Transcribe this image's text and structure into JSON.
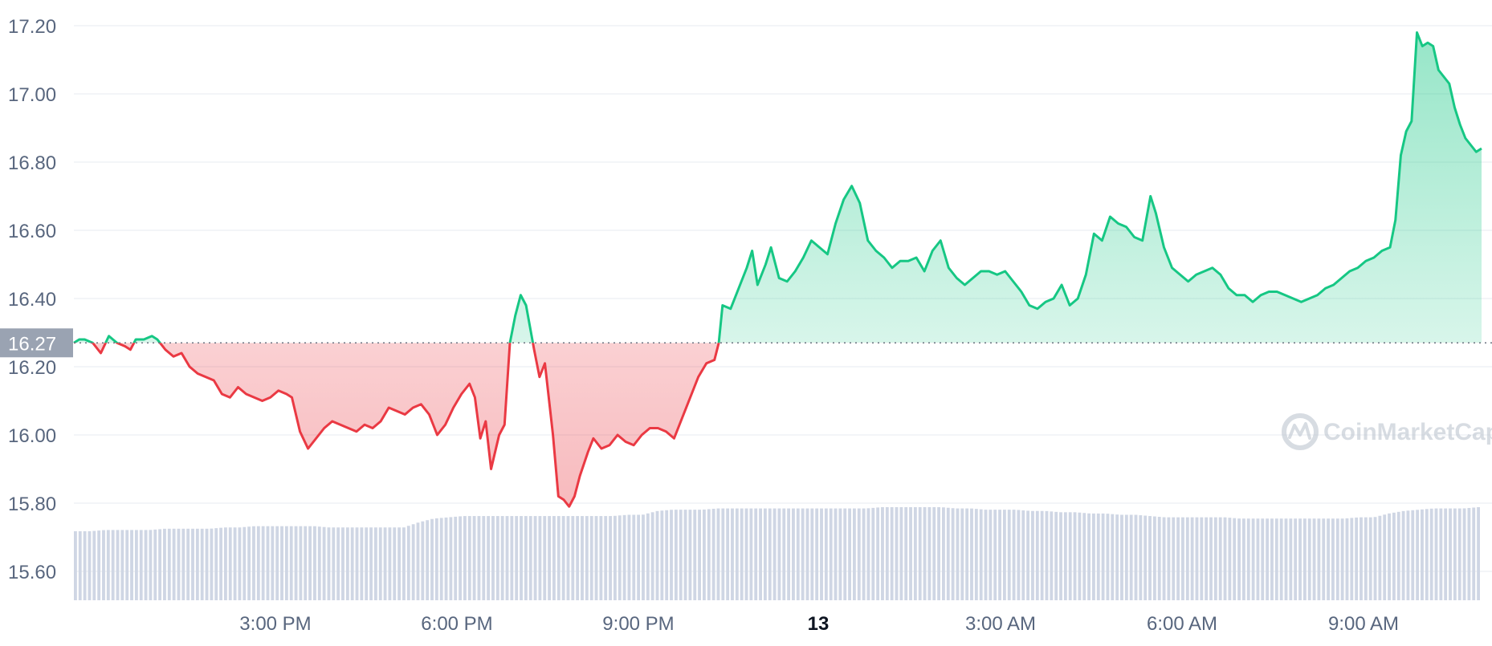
{
  "chart_data": {
    "type": "line",
    "title": "",
    "xlabel": "",
    "ylabel": "",
    "ylim": [
      15.5,
      17.25
    ],
    "y_ticks": [
      "17.20",
      "17.00",
      "16.80",
      "16.60",
      "16.40",
      "16.20",
      "16.00",
      "15.80",
      "15.60"
    ],
    "x_ticks": [
      "3:00 PM",
      "6:00 PM",
      "9:00 PM",
      "13",
      "3:00 AM",
      "6:00 AM",
      "9:00 AM"
    ],
    "x_ticks_bold": [
      "13"
    ],
    "grid": true,
    "legend": "none",
    "baseline": {
      "value": 16.27,
      "label": "16.27"
    },
    "colors": {
      "above": "#16c784",
      "below": "#ea3943",
      "volume": "#cfd6e4",
      "grid": "#eff2f5",
      "axis_text": "#58667e"
    },
    "watermark": "CoinMarketCap",
    "series": [
      {
        "name": "",
        "x_hours_note_removed": true,
        "points": [
          [
            0.0,
            16.27
          ],
          [
            0.1,
            16.28
          ],
          [
            0.2,
            16.28
          ],
          [
            0.35,
            16.27
          ],
          [
            0.5,
            16.24
          ],
          [
            0.65,
            16.29
          ],
          [
            0.8,
            16.27
          ],
          [
            0.95,
            16.26
          ],
          [
            1.05,
            16.25
          ],
          [
            1.15,
            16.28
          ],
          [
            1.3,
            16.28
          ],
          [
            1.45,
            16.29
          ],
          [
            1.55,
            16.28
          ],
          [
            1.7,
            16.25
          ],
          [
            1.85,
            16.23
          ],
          [
            2.0,
            16.24
          ],
          [
            2.15,
            16.2
          ],
          [
            2.3,
            16.18
          ],
          [
            2.45,
            16.17
          ],
          [
            2.6,
            16.16
          ],
          [
            2.75,
            16.12
          ],
          [
            2.9,
            16.11
          ],
          [
            3.05,
            16.14
          ],
          [
            3.2,
            16.12
          ],
          [
            3.35,
            16.11
          ],
          [
            3.5,
            16.1
          ],
          [
            3.65,
            16.11
          ],
          [
            3.8,
            16.13
          ],
          [
            3.95,
            16.12
          ],
          [
            4.05,
            16.11
          ],
          [
            4.2,
            16.01
          ],
          [
            4.35,
            15.96
          ],
          [
            4.5,
            15.99
          ],
          [
            4.65,
            16.02
          ],
          [
            4.8,
            16.04
          ],
          [
            4.95,
            16.03
          ],
          [
            5.1,
            16.02
          ],
          [
            5.25,
            16.01
          ],
          [
            5.4,
            16.03
          ],
          [
            5.55,
            16.02
          ],
          [
            5.7,
            16.04
          ],
          [
            5.85,
            16.08
          ],
          [
            6.0,
            16.07
          ],
          [
            6.15,
            16.06
          ],
          [
            6.3,
            16.08
          ],
          [
            6.45,
            16.09
          ],
          [
            6.6,
            16.06
          ],
          [
            6.75,
            16.0
          ],
          [
            6.9,
            16.03
          ],
          [
            7.05,
            16.08
          ],
          [
            7.2,
            16.12
          ],
          [
            7.35,
            16.15
          ],
          [
            7.45,
            16.11
          ],
          [
            7.55,
            15.99
          ],
          [
            7.65,
            16.04
          ],
          [
            7.75,
            15.9
          ],
          [
            7.9,
            16.0
          ],
          [
            8.0,
            16.03
          ],
          [
            8.1,
            16.27
          ],
          [
            8.2,
            16.35
          ],
          [
            8.3,
            16.41
          ],
          [
            8.4,
            16.38
          ],
          [
            8.55,
            16.25
          ],
          [
            8.65,
            16.17
          ],
          [
            8.75,
            16.21
          ],
          [
            8.9,
            16.0
          ],
          [
            9.0,
            15.82
          ],
          [
            9.1,
            15.81
          ],
          [
            9.2,
            15.79
          ],
          [
            9.3,
            15.82
          ],
          [
            9.4,
            15.88
          ],
          [
            9.55,
            15.95
          ],
          [
            9.65,
            15.99
          ],
          [
            9.8,
            15.96
          ],
          [
            9.95,
            15.97
          ],
          [
            10.1,
            16.0
          ],
          [
            10.25,
            15.98
          ],
          [
            10.4,
            15.97
          ],
          [
            10.55,
            16.0
          ],
          [
            10.7,
            16.02
          ],
          [
            10.85,
            16.02
          ],
          [
            11.0,
            16.01
          ],
          [
            11.15,
            15.99
          ],
          [
            11.3,
            16.05
          ],
          [
            11.45,
            16.11
          ],
          [
            11.6,
            16.17
          ],
          [
            11.75,
            16.21
          ],
          [
            11.9,
            16.22
          ],
          [
            11.98,
            16.27
          ],
          [
            12.05,
            16.38
          ],
          [
            12.2,
            16.37
          ],
          [
            12.35,
            16.43
          ],
          [
            12.5,
            16.49
          ],
          [
            12.6,
            16.54
          ],
          [
            12.7,
            16.44
          ],
          [
            12.85,
            16.5
          ],
          [
            12.95,
            16.55
          ],
          [
            13.1,
            16.46
          ],
          [
            13.25,
            16.45
          ],
          [
            13.4,
            16.48
          ],
          [
            13.55,
            16.52
          ],
          [
            13.7,
            16.57
          ],
          [
            13.85,
            16.55
          ],
          [
            14.0,
            16.53
          ],
          [
            14.15,
            16.62
          ],
          [
            14.3,
            16.69
          ],
          [
            14.45,
            16.73
          ],
          [
            14.6,
            16.68
          ],
          [
            14.75,
            16.57
          ],
          [
            14.9,
            16.54
          ],
          [
            15.05,
            16.52
          ],
          [
            15.2,
            16.49
          ],
          [
            15.35,
            16.51
          ],
          [
            15.5,
            16.51
          ],
          [
            15.65,
            16.52
          ],
          [
            15.8,
            16.48
          ],
          [
            15.95,
            16.54
          ],
          [
            16.1,
            16.57
          ],
          [
            16.25,
            16.49
          ],
          [
            16.4,
            16.46
          ],
          [
            16.55,
            16.44
          ],
          [
            16.7,
            16.46
          ],
          [
            16.85,
            16.48
          ],
          [
            17.0,
            16.48
          ],
          [
            17.15,
            16.47
          ],
          [
            17.3,
            16.48
          ],
          [
            17.45,
            16.45
          ],
          [
            17.6,
            16.42
          ],
          [
            17.75,
            16.38
          ],
          [
            17.9,
            16.37
          ],
          [
            18.05,
            16.39
          ],
          [
            18.2,
            16.4
          ],
          [
            18.35,
            16.44
          ],
          [
            18.5,
            16.38
          ],
          [
            18.65,
            16.4
          ],
          [
            18.8,
            16.47
          ],
          [
            18.95,
            16.59
          ],
          [
            19.1,
            16.57
          ],
          [
            19.25,
            16.64
          ],
          [
            19.4,
            16.62
          ],
          [
            19.55,
            16.61
          ],
          [
            19.7,
            16.58
          ],
          [
            19.85,
            16.57
          ],
          [
            20.0,
            16.7
          ],
          [
            20.1,
            16.65
          ],
          [
            20.25,
            16.55
          ],
          [
            20.4,
            16.49
          ],
          [
            20.55,
            16.47
          ],
          [
            20.7,
            16.45
          ],
          [
            20.85,
            16.47
          ],
          [
            21.0,
            16.48
          ],
          [
            21.15,
            16.49
          ],
          [
            21.3,
            16.47
          ],
          [
            21.45,
            16.43
          ],
          [
            21.6,
            16.41
          ],
          [
            21.75,
            16.41
          ],
          [
            21.9,
            16.39
          ],
          [
            22.05,
            16.41
          ],
          [
            22.2,
            16.42
          ],
          [
            22.35,
            16.42
          ],
          [
            22.5,
            16.41
          ],
          [
            22.65,
            16.4
          ],
          [
            22.8,
            16.39
          ],
          [
            22.95,
            16.4
          ],
          [
            23.1,
            16.41
          ],
          [
            23.25,
            16.43
          ],
          [
            23.4,
            16.44
          ],
          [
            23.55,
            16.46
          ],
          [
            23.7,
            16.48
          ],
          [
            23.85,
            16.49
          ],
          [
            24.0,
            16.51
          ],
          [
            24.15,
            16.52
          ],
          [
            24.3,
            16.54
          ],
          [
            24.45,
            16.55
          ],
          [
            24.55,
            16.63
          ],
          [
            24.65,
            16.82
          ],
          [
            24.75,
            16.89
          ],
          [
            24.85,
            16.92
          ],
          [
            24.95,
            17.18
          ],
          [
            25.05,
            17.14
          ],
          [
            25.15,
            17.15
          ],
          [
            25.25,
            17.14
          ],
          [
            25.35,
            17.07
          ],
          [
            25.45,
            17.05
          ],
          [
            25.55,
            17.03
          ],
          [
            25.65,
            16.96
          ],
          [
            25.75,
            16.91
          ],
          [
            25.85,
            16.87
          ],
          [
            25.95,
            16.85
          ],
          [
            26.05,
            16.83
          ],
          [
            26.15,
            16.84
          ]
        ]
      }
    ],
    "volume_series": {
      "name": "",
      "note": "",
      "levels": [
        0.57,
        0.57,
        0.58,
        0.58,
        0.58,
        0.58,
        0.59,
        0.59,
        0.59,
        0.59,
        0.6,
        0.6,
        0.61,
        0.61,
        0.61,
        0.61,
        0.61,
        0.6,
        0.6,
        0.6,
        0.6,
        0.6,
        0.6,
        0.64,
        0.67,
        0.68,
        0.69,
        0.69,
        0.69,
        0.69,
        0.69,
        0.69,
        0.69,
        0.69,
        0.69,
        0.69,
        0.69,
        0.7,
        0.7,
        0.73,
        0.74,
        0.74,
        0.74,
        0.75,
        0.75,
        0.75,
        0.75,
        0.75,
        0.75,
        0.75,
        0.75,
        0.75,
        0.75,
        0.75,
        0.76,
        0.76,
        0.76,
        0.76,
        0.76,
        0.75,
        0.75,
        0.74,
        0.74,
        0.74,
        0.73,
        0.73,
        0.72,
        0.72,
        0.71,
        0.71,
        0.7,
        0.7,
        0.69,
        0.68,
        0.68,
        0.68,
        0.68,
        0.68,
        0.67,
        0.67,
        0.67,
        0.67,
        0.67,
        0.67,
        0.67,
        0.67,
        0.68,
        0.68,
        0.71,
        0.73,
        0.74,
        0.75,
        0.75,
        0.75,
        0.76
      ]
    }
  }
}
